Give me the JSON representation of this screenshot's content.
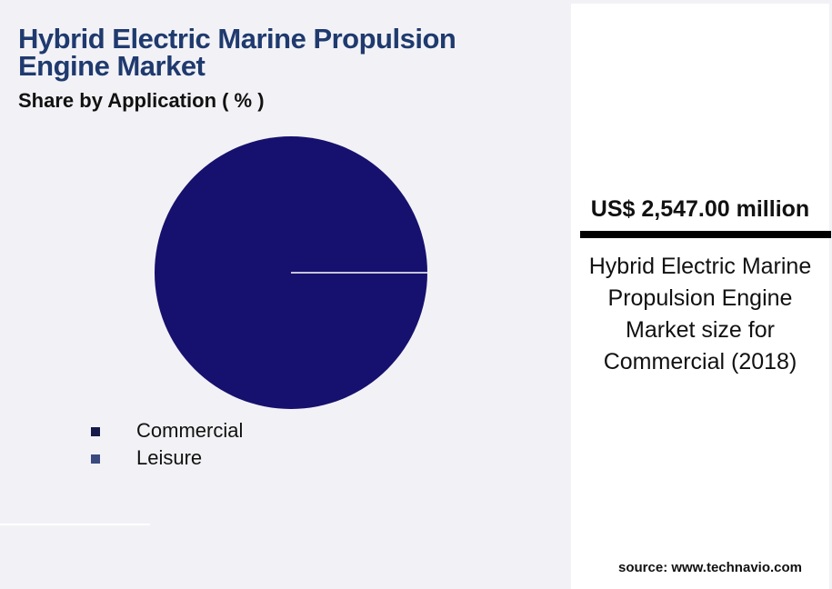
{
  "chart_data": {
    "type": "pie",
    "title": "Hybrid Electric Marine Propulsion Engine Market",
    "subtitle": "Share by Application ( % )",
    "categories": [
      "Commercial",
      "Leisure"
    ],
    "values": [
      100,
      0
    ],
    "colors": [
      "#16116e",
      "#3a4a7e"
    ],
    "legend_colors": [
      "#141a4a",
      "#3a4a7e"
    ]
  },
  "panel": {
    "value": "US$ 2,547.00 million",
    "description": "Hybrid Electric Marine Propulsion Engine Market size for Commercial (2018)",
    "source": "source: www.technavio.com"
  }
}
